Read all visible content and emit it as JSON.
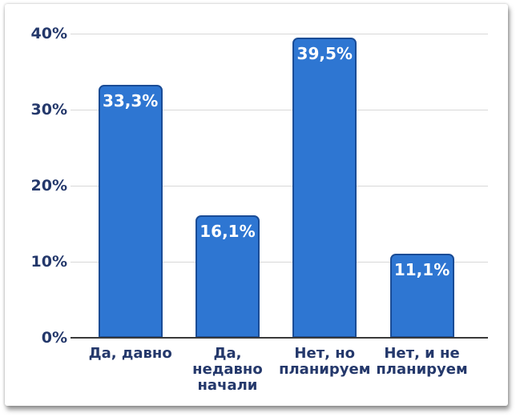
{
  "chart_data": {
    "type": "bar",
    "title": "",
    "xlabel": "",
    "ylabel": "",
    "categories": [
      "Да, давно",
      "Да,\nнедавно\nначали",
      "Нет, но\nпланируем",
      "Нет, и не\nпланируем"
    ],
    "values": [
      33.3,
      16.1,
      39.5,
      11.1
    ],
    "value_labels": [
      "33,3%",
      "16,1%",
      "39,5%",
      "11,1%"
    ],
    "y_ticks": [
      "0%",
      "10%",
      "20%",
      "30%",
      "40%"
    ],
    "ylim": [
      0,
      40
    ],
    "grid": true,
    "legend": "none",
    "colors": {
      "bar_fill": "#2e76d2",
      "bar_border": "#1a4c96",
      "value_label": "#ffffff",
      "axis_text": "#24386b",
      "gridline": "#d8d8d8",
      "axis_line": "#3a3a3a",
      "card_background": "#ffffff"
    }
  }
}
